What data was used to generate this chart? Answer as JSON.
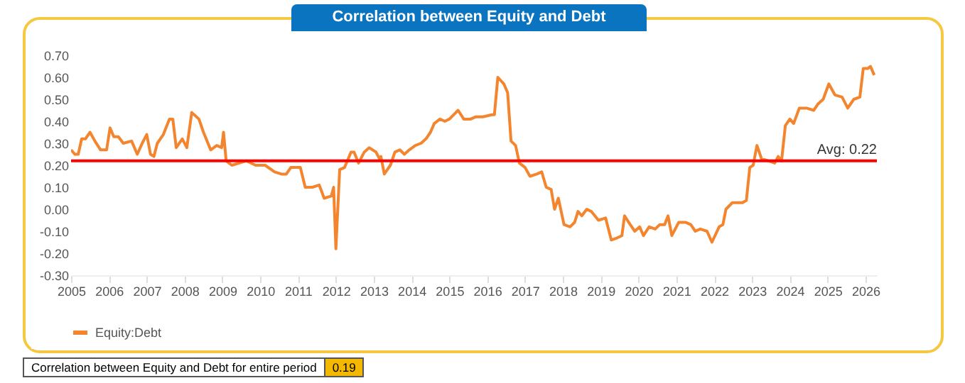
{
  "chart_data": {
    "type": "line",
    "title": "Correlation between Equity and Debt",
    "x": [
      2005.0,
      2005.1,
      2005.19,
      2005.28,
      2005.38,
      2005.5,
      2005.63,
      2005.78,
      2005.94,
      2006.03,
      2006.13,
      2006.25,
      2006.38,
      2006.6,
      2006.75,
      2006.88,
      2007.0,
      2007.1,
      2007.19,
      2007.28,
      2007.44,
      2007.6,
      2007.69,
      2007.78,
      2007.94,
      2008.06,
      2008.19,
      2008.38,
      2008.5,
      2008.69,
      2008.85,
      2008.98,
      2009.03,
      2009.1,
      2009.25,
      2009.63,
      2009.88,
      2010.13,
      2010.38,
      2010.56,
      2010.69,
      2010.81,
      2011.06,
      2011.19,
      2011.38,
      2011.56,
      2011.69,
      2011.88,
      2011.94,
      2012.0,
      2012.1,
      2012.23,
      2012.4,
      2012.48,
      2012.6,
      2012.75,
      2012.88,
      2013.06,
      2013.15,
      2013.19,
      2013.28,
      2013.44,
      2013.56,
      2013.69,
      2013.81,
      2013.94,
      2014.1,
      2014.25,
      2014.38,
      2014.5,
      2014.6,
      2014.75,
      2014.88,
      2015.0,
      2015.23,
      2015.38,
      2015.56,
      2015.69,
      2015.88,
      2016.13,
      2016.19,
      2016.28,
      2016.44,
      2016.54,
      2016.63,
      2016.75,
      2016.85,
      2017.0,
      2017.13,
      2017.31,
      2017.44,
      2017.56,
      2017.69,
      2017.78,
      2017.88,
      2018.03,
      2018.19,
      2018.31,
      2018.4,
      2018.5,
      2018.63,
      2018.75,
      2018.94,
      2019.13,
      2019.28,
      2019.44,
      2019.56,
      2019.63,
      2019.78,
      2019.9,
      2020.03,
      2020.13,
      2020.28,
      2020.44,
      2020.56,
      2020.69,
      2020.78,
      2020.88,
      2021.06,
      2021.25,
      2021.38,
      2021.5,
      2021.63,
      2021.81,
      2021.94,
      2022.13,
      2022.23,
      2022.31,
      2022.48,
      2022.6,
      2022.75,
      2022.85,
      2022.94,
      2023.03,
      2023.13,
      2023.25,
      2023.44,
      2023.6,
      2023.69,
      2023.78,
      2023.88,
      2024.0,
      2024.1,
      2024.25,
      2024.44,
      2024.63,
      2024.75,
      2024.88,
      2025.03,
      2025.19,
      2025.38,
      2025.53,
      2025.69,
      2025.85,
      2025.94,
      2026.06,
      2026.13,
      2026.23
    ],
    "series": [
      {
        "name": "Equity:Debt",
        "color": "#f4852f",
        "values": [
          0.27,
          0.25,
          0.25,
          0.32,
          0.32,
          0.35,
          0.31,
          0.27,
          0.27,
          0.37,
          0.33,
          0.33,
          0.3,
          0.31,
          0.25,
          0.3,
          0.34,
          0.25,
          0.24,
          0.3,
          0.34,
          0.41,
          0.41,
          0.28,
          0.32,
          0.28,
          0.44,
          0.41,
          0.35,
          0.27,
          0.29,
          0.28,
          0.35,
          0.22,
          0.2,
          0.22,
          0.2,
          0.2,
          0.17,
          0.16,
          0.16,
          0.19,
          0.19,
          0.1,
          0.1,
          0.11,
          0.05,
          0.06,
          0.1,
          -0.18,
          0.18,
          0.19,
          0.26,
          0.26,
          0.21,
          0.26,
          0.28,
          0.26,
          0.23,
          0.24,
          0.16,
          0.2,
          0.26,
          0.27,
          0.25,
          0.27,
          0.29,
          0.3,
          0.32,
          0.35,
          0.39,
          0.41,
          0.4,
          0.41,
          0.45,
          0.41,
          0.41,
          0.42,
          0.42,
          0.43,
          0.43,
          0.6,
          0.57,
          0.53,
          0.31,
          0.29,
          0.21,
          0.19,
          0.15,
          0.16,
          0.17,
          0.1,
          0.09,
          0.0,
          0.05,
          -0.07,
          -0.08,
          -0.06,
          -0.01,
          -0.03,
          0.0,
          -0.01,
          -0.05,
          -0.04,
          -0.14,
          -0.13,
          -0.12,
          -0.03,
          -0.07,
          -0.1,
          -0.08,
          -0.12,
          -0.08,
          -0.09,
          -0.07,
          -0.07,
          -0.03,
          -0.12,
          -0.06,
          -0.06,
          -0.07,
          -0.1,
          -0.09,
          -0.1,
          -0.15,
          -0.08,
          -0.07,
          0.0,
          0.03,
          0.03,
          0.03,
          0.04,
          0.19,
          0.2,
          0.29,
          0.23,
          0.22,
          0.21,
          0.24,
          0.22,
          0.38,
          0.41,
          0.39,
          0.46,
          0.46,
          0.45,
          0.48,
          0.5,
          0.57,
          0.52,
          0.51,
          0.46,
          0.5,
          0.51,
          0.64,
          0.64,
          0.65,
          0.61
        ]
      }
    ],
    "xlim": [
      2005,
      2026.3
    ],
    "xticks": [
      2005,
      2006,
      2007,
      2008,
      2009,
      2010,
      2011,
      2012,
      2013,
      2014,
      2015,
      2016,
      2017,
      2018,
      2019,
      2020,
      2021,
      2022,
      2023,
      2024,
      2025,
      2026
    ],
    "ylim": [
      -0.3,
      0.7
    ],
    "yticks": [
      {
        "value": -0.3,
        "label": "-0.30"
      },
      {
        "value": -0.2,
        "label": "-0.20"
      },
      {
        "value": -0.1,
        "label": "-0.10"
      },
      {
        "value": 0,
        "label": "0.00"
      },
      {
        "value": 0.1,
        "label": "0.10"
      },
      {
        "value": 0.2,
        "label": "0.20"
      },
      {
        "value": 0.3,
        "label": "0.30"
      },
      {
        "value": 0.4,
        "label": "0.40"
      },
      {
        "value": 0.5,
        "label": "0.50"
      },
      {
        "value": 0.6,
        "label": "0.60"
      },
      {
        "value": 0.7,
        "label": "0.70"
      }
    ],
    "ref_lines": [
      {
        "axis": "y",
        "value": 0.22,
        "label": "Avg: 0.22",
        "color": "#ff0000"
      }
    ],
    "legend": "bottom",
    "grid": false,
    "marker": "none",
    "line_style": "solid",
    "annotations": [
      "Correlation between Equity and Debt for entire period",
      "0.19"
    ]
  }
}
